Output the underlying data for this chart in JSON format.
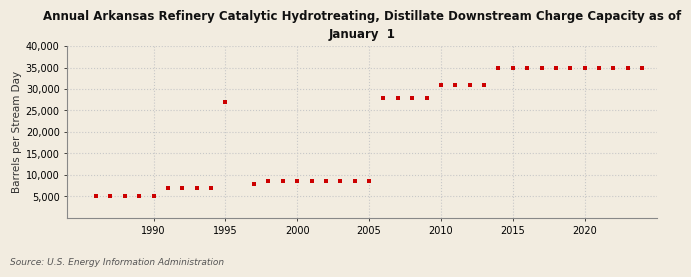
{
  "title": "Annual Arkansas Refinery Catalytic Hydrotreating, Distillate Downstream Charge Capacity as of\nJanuary  1",
  "ylabel": "Barrels per Stream Day",
  "source": "Source: U.S. Energy Information Administration",
  "background_color": "#f2ece0",
  "marker_color": "#cc0000",
  "years": [
    1986,
    1987,
    1988,
    1989,
    1990,
    1991,
    1992,
    1993,
    1994,
    1995,
    1997,
    1998,
    1999,
    2000,
    2001,
    2002,
    2003,
    2004,
    2005,
    2006,
    2007,
    2008,
    2009,
    2010,
    2011,
    2012,
    2013,
    2014,
    2015,
    2016,
    2017,
    2018,
    2019,
    2020,
    2021,
    2022,
    2023,
    2024
  ],
  "values": [
    5000,
    5000,
    5000,
    5000,
    5000,
    7000,
    7000,
    7000,
    7000,
    27000,
    8000,
    8500,
    8500,
    8500,
    8500,
    8500,
    8500,
    8500,
    8500,
    28000,
    28000,
    28000,
    28000,
    31000,
    31000,
    31000,
    31000,
    35000,
    35000,
    35000,
    35000,
    35000,
    35000,
    35000,
    35000,
    35000,
    35000,
    35000
  ],
  "xlim": [
    1984,
    2025
  ],
  "ylim": [
    0,
    40000
  ],
  "yticks": [
    5000,
    10000,
    15000,
    20000,
    25000,
    30000,
    35000,
    40000
  ],
  "xticks": [
    1990,
    1995,
    2000,
    2005,
    2010,
    2015,
    2020
  ],
  "grid_color": "#c8c8c8",
  "title_fontsize": 8.5,
  "ylabel_fontsize": 7.5,
  "tick_fontsize": 7,
  "source_fontsize": 6.5
}
